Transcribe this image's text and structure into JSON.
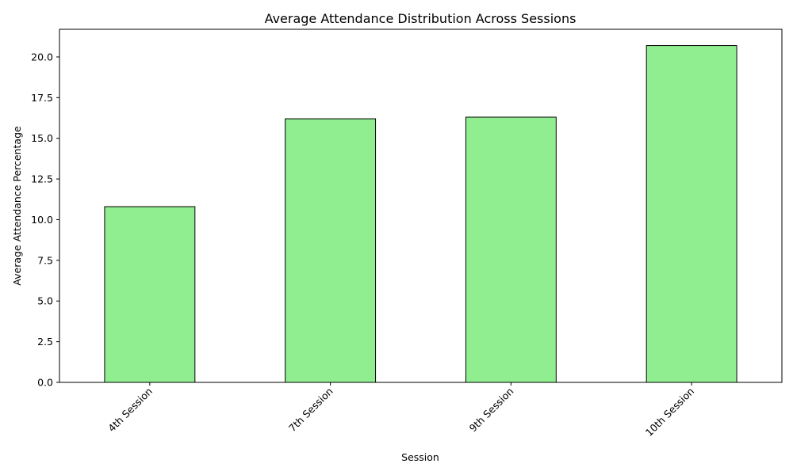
{
  "chart_data": {
    "type": "bar",
    "title": "Average Attendance Distribution Across Sessions",
    "xlabel": "Session",
    "ylabel": "Average Attendance Percentage",
    "categories": [
      "4th Session",
      "7th Session",
      "9th Session",
      "10th Session"
    ],
    "values": [
      10.8,
      16.2,
      16.3,
      20.7
    ],
    "ylim": [
      0,
      21.7
    ],
    "yticks": [
      0.0,
      2.5,
      5.0,
      7.5,
      10.0,
      12.5,
      15.0,
      17.5,
      20.0
    ],
    "ytick_labels": [
      "0.0",
      "2.5",
      "5.0",
      "7.5",
      "10.0",
      "12.5",
      "15.0",
      "17.5",
      "20.0"
    ],
    "bar_color": "#90ee90",
    "bar_edge_color": "#000000",
    "grid": false,
    "legend": "none"
  }
}
